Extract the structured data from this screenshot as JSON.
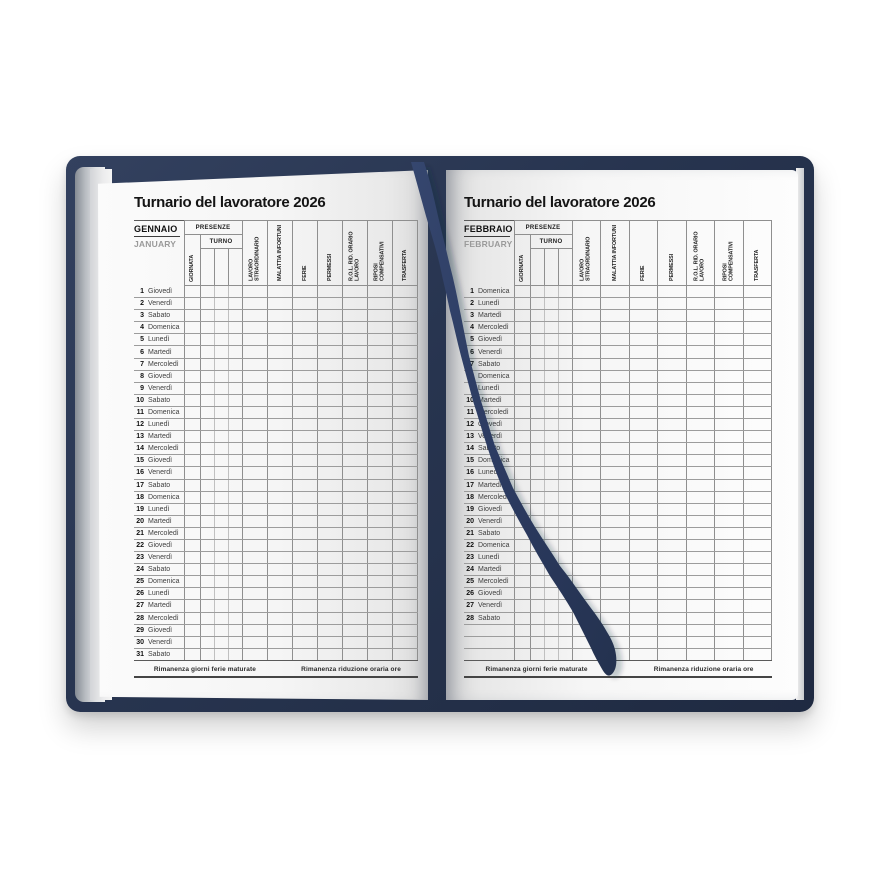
{
  "book": {
    "cover_color": "#27344f",
    "ribbon_color": "#2d3c62",
    "ribbon_icon": "bookmark-ribbon"
  },
  "table_headers": {
    "presenze": "PRESENZE",
    "turno": "TURNO",
    "giornata": "GIORNATA",
    "categories": [
      "LAVORO STRAORDINARIO",
      "MALATTIA INFORTUNI",
      "FERIE",
      "PERMESSI",
      "R.O.L. RID. ORARIO LAVORO",
      "RIPOSI COMPENSATIVI",
      "TRASFERTA"
    ]
  },
  "footer": {
    "left": "Rimanenza giorni ferie maturate",
    "right": "Rimanenza riduzione oraria ore"
  },
  "pages": [
    {
      "title": "Turnario del lavoratore 2026",
      "month_it": "GENNAIO",
      "month_en": "JANUARY",
      "empty_rows": 0,
      "days": [
        {
          "n": 1,
          "d": "Giovedì"
        },
        {
          "n": 2,
          "d": "Venerdì"
        },
        {
          "n": 3,
          "d": "Sabato"
        },
        {
          "n": 4,
          "d": "Domenica"
        },
        {
          "n": 5,
          "d": "Lunedì"
        },
        {
          "n": 6,
          "d": "Martedì"
        },
        {
          "n": 7,
          "d": "Mercoledì"
        },
        {
          "n": 8,
          "d": "Giovedì"
        },
        {
          "n": 9,
          "d": "Venerdì"
        },
        {
          "n": 10,
          "d": "Sabato"
        },
        {
          "n": 11,
          "d": "Domenica"
        },
        {
          "n": 12,
          "d": "Lunedì"
        },
        {
          "n": 13,
          "d": "Martedì"
        },
        {
          "n": 14,
          "d": "Mercoledì"
        },
        {
          "n": 15,
          "d": "Giovedì"
        },
        {
          "n": 16,
          "d": "Venerdì"
        },
        {
          "n": 17,
          "d": "Sabato"
        },
        {
          "n": 18,
          "d": "Domenica"
        },
        {
          "n": 19,
          "d": "Lunedì"
        },
        {
          "n": 20,
          "d": "Martedì"
        },
        {
          "n": 21,
          "d": "Mercoledì"
        },
        {
          "n": 22,
          "d": "Giovedì"
        },
        {
          "n": 23,
          "d": "Venerdì"
        },
        {
          "n": 24,
          "d": "Sabato"
        },
        {
          "n": 25,
          "d": "Domenica"
        },
        {
          "n": 26,
          "d": "Lunedì"
        },
        {
          "n": 27,
          "d": "Martedì"
        },
        {
          "n": 28,
          "d": "Mercoledì"
        },
        {
          "n": 29,
          "d": "Giovedì"
        },
        {
          "n": 30,
          "d": "Venerdì"
        },
        {
          "n": 31,
          "d": "Sabato"
        }
      ]
    },
    {
      "title": "Turnario del lavoratore 2026",
      "month_it": "FEBBRAIO",
      "month_en": "FEBRUARY",
      "empty_rows": 3,
      "days": [
        {
          "n": 1,
          "d": "Domenica"
        },
        {
          "n": 2,
          "d": "Lunedì"
        },
        {
          "n": 3,
          "d": "Martedì"
        },
        {
          "n": 4,
          "d": "Mercoledì"
        },
        {
          "n": 5,
          "d": "Giovedì"
        },
        {
          "n": 6,
          "d": "Venerdì"
        },
        {
          "n": 7,
          "d": "Sabato"
        },
        {
          "n": 8,
          "d": "Domenica"
        },
        {
          "n": 9,
          "d": "Lunedì"
        },
        {
          "n": 10,
          "d": "Martedì"
        },
        {
          "n": 11,
          "d": "Mercoledì"
        },
        {
          "n": 12,
          "d": "Giovedì"
        },
        {
          "n": 13,
          "d": "Venerdì"
        },
        {
          "n": 14,
          "d": "Sabato"
        },
        {
          "n": 15,
          "d": "Domenica"
        },
        {
          "n": 16,
          "d": "Lunedì"
        },
        {
          "n": 17,
          "d": "Martedì"
        },
        {
          "n": 18,
          "d": "Mercoledì"
        },
        {
          "n": 19,
          "d": "Giovedì"
        },
        {
          "n": 20,
          "d": "Venerdì"
        },
        {
          "n": 21,
          "d": "Sabato"
        },
        {
          "n": 22,
          "d": "Domenica"
        },
        {
          "n": 23,
          "d": "Lunedì"
        },
        {
          "n": 24,
          "d": "Martedì"
        },
        {
          "n": 25,
          "d": "Mercoledì"
        },
        {
          "n": 26,
          "d": "Giovedì"
        },
        {
          "n": 27,
          "d": "Venerdì"
        },
        {
          "n": 28,
          "d": "Sabato"
        }
      ]
    }
  ]
}
